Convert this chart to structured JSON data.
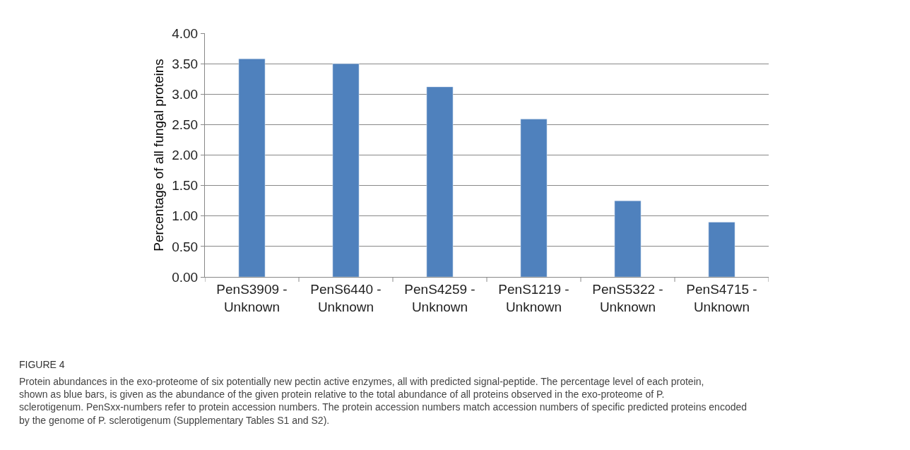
{
  "chart_data": {
    "type": "bar",
    "ylabel": "Percentage of all fungal proteins",
    "categories": [
      "PenS3909 -\nUnknown",
      "PenS6440 -\nUnknown",
      "PenS4259 -\nUnknown",
      "PenS1219 -\nUnknown",
      "PenS5322 -\nUnknown",
      "PenS4715 -\nUnknown"
    ],
    "values": [
      3.58,
      3.5,
      3.12,
      2.59,
      1.25,
      0.9
    ],
    "color": "#4f81bd",
    "ylim": [
      0,
      4
    ],
    "yticks": [
      {
        "value": 0,
        "label": "0.00"
      },
      {
        "value": 0.5,
        "label": "0.50"
      },
      {
        "value": 1,
        "label": "1.00"
      },
      {
        "value": 1.5,
        "label": "1.50"
      },
      {
        "value": 2,
        "label": "2.00"
      },
      {
        "value": 2.5,
        "label": "2.50"
      },
      {
        "value": 3,
        "label": "3.00"
      },
      {
        "value": 3.5,
        "label": "3.50"
      },
      {
        "value": 4,
        "label": "4.00"
      }
    ],
    "grid": "y",
    "legend": false,
    "annotations": [
      "FIGURE 4",
      "Protein abundances in the exo-proteome of six potentially new pectin active enzymes, all with predicted signal-peptide. The percentage level of each protein, shown as blue bars, is given as the abundance of the given protein relative to the total abundance of all proteins observed in the exo-proteome of P. sclerotigenum. PenSxx-numbers refer to protein accession numbers. The protein accession numbers match accession numbers of specific predicted proteins encoded by the genome of P. sclerotigenum (Supplementary Tables S1 and S2)."
    ]
  }
}
